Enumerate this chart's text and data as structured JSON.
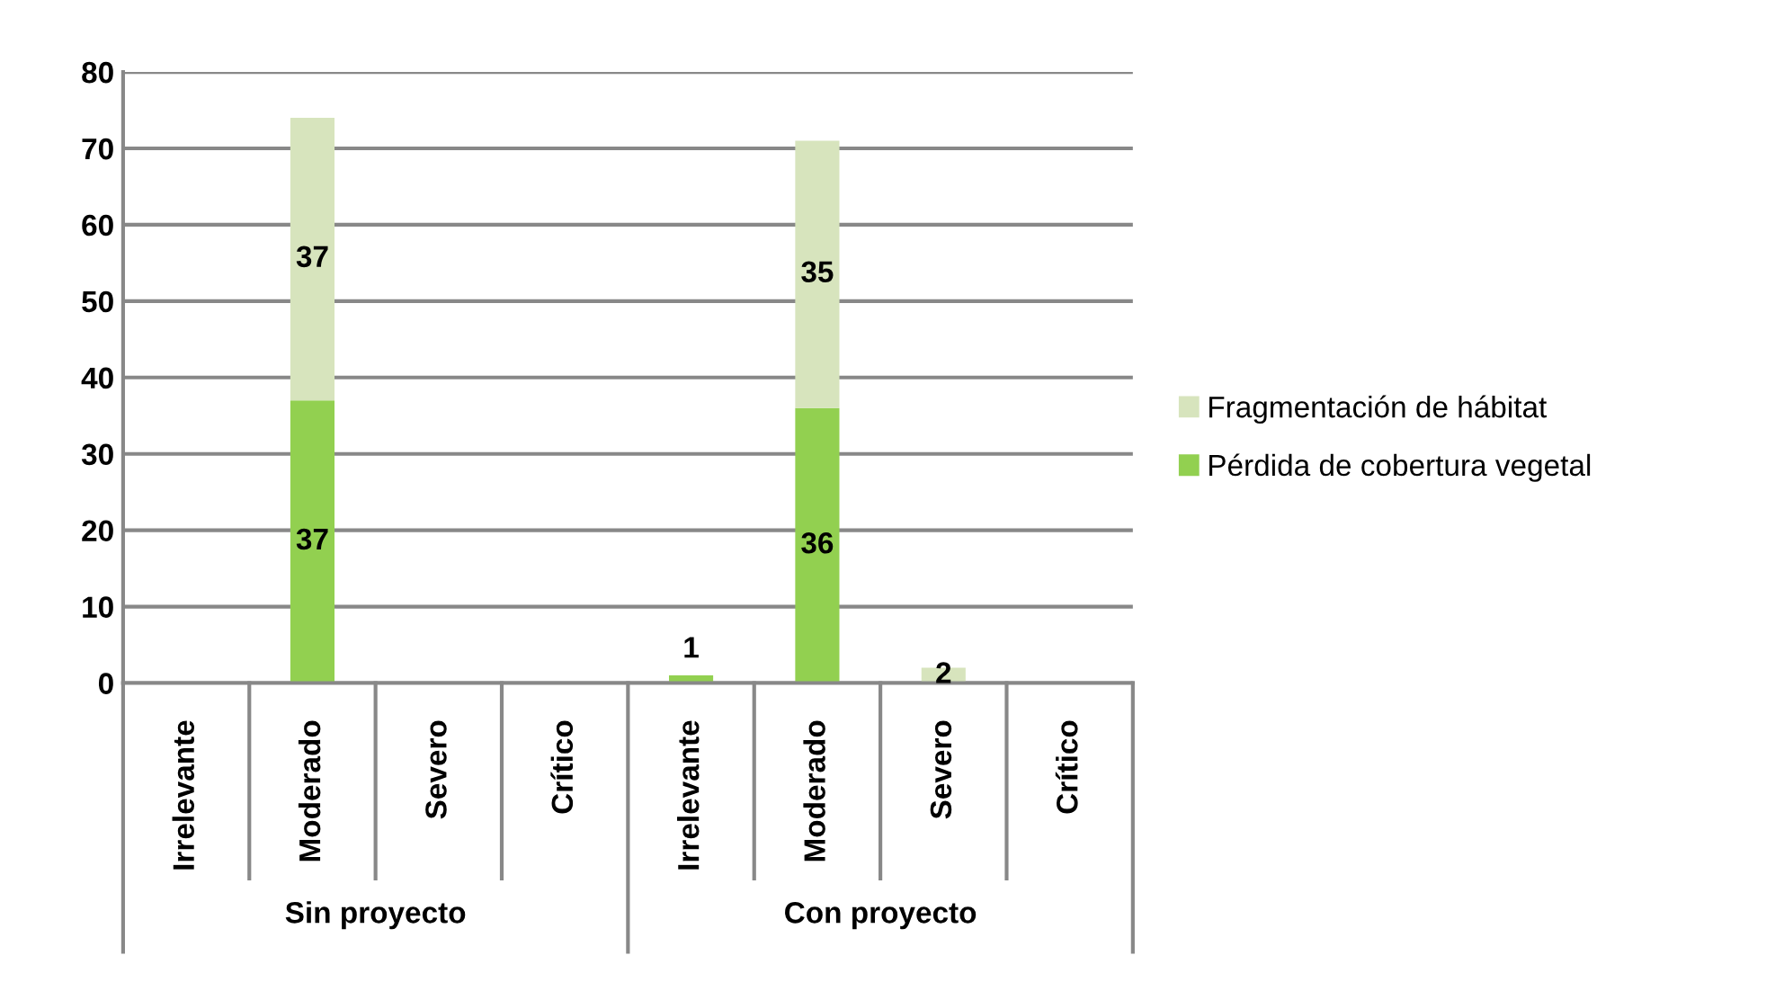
{
  "chart_data": {
    "type": "bar",
    "stacked": true,
    "categories": [
      "Irrelevante",
      "Moderado",
      "Severo",
      "Crítico",
      "Irrelevante",
      "Moderado",
      "Severo",
      "Crítico"
    ],
    "annotations": [
      "Sin proyecto",
      "Con proyecto"
    ],
    "series": [
      {
        "name": "Pérdida de cobertura vegetal",
        "color": "#92d050",
        "values": [
          null,
          37,
          null,
          null,
          1,
          36,
          null,
          null
        ]
      },
      {
        "name": "Fragmentación de hábitat",
        "color": "#d7e4bd",
        "values": [
          null,
          37,
          null,
          null,
          null,
          35,
          2,
          null
        ]
      }
    ],
    "ylim": [
      0,
      80
    ],
    "yticks": [
      0,
      10,
      20,
      30,
      40,
      50,
      60,
      70,
      80
    ],
    "grid": "y",
    "legend": "right",
    "data_labels": true
  }
}
